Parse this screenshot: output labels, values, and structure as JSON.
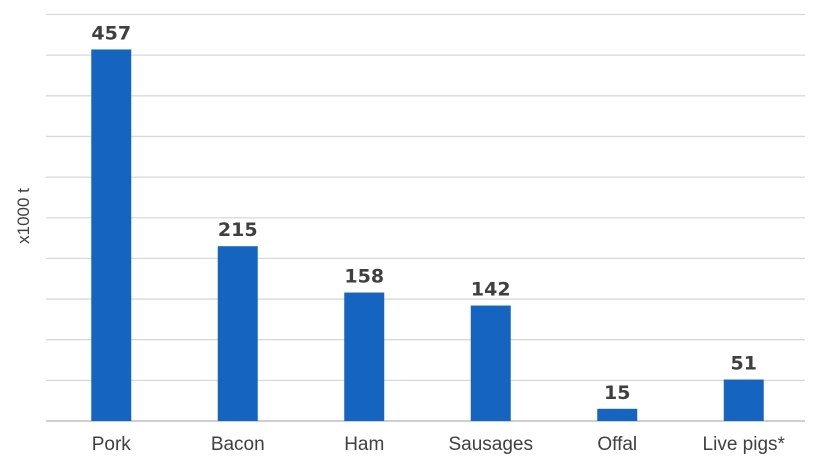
{
  "chart_data": {
    "type": "bar",
    "categories": [
      "Pork",
      "Bacon",
      "Ham",
      "Sausages",
      "Offal",
      "Live pigs*"
    ],
    "values": [
      457,
      215,
      158,
      142,
      15,
      51
    ],
    "data_labels": [
      "457",
      "215",
      "158",
      "142",
      "15",
      "51"
    ],
    "title": "",
    "xlabel": "",
    "ylabel": "x1000 t",
    "ylim": [
      0,
      500
    ],
    "gridline_step": 50,
    "grid": true,
    "bar_color": "#1565c0",
    "legend": "none"
  }
}
